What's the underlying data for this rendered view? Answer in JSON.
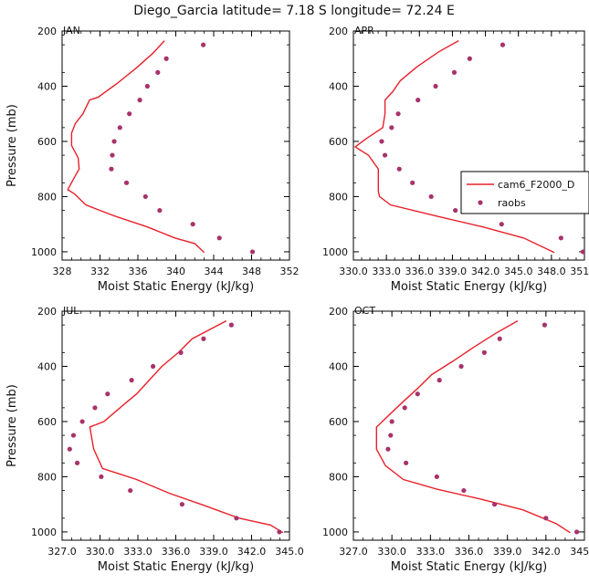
{
  "figure": {
    "title": "Diego_Garcia  latitude= 7.18 S longitude= 72.24 E",
    "series_color": "#e8202a",
    "raobs_color": "#a8326b"
  },
  "chart_data": [
    {
      "type": "line",
      "panel_label": "JAN",
      "xlabel": "Moist Static Energy (kJ/kg)",
      "ylabel": "Pressure (mb)",
      "xlim": [
        328,
        352
      ],
      "ylim": [
        200,
        1030
      ],
      "y_inverted": true,
      "x_ticks": [
        "328",
        "332",
        "336",
        "340",
        "344",
        "348",
        "352"
      ],
      "x_tick_values": [
        328,
        332,
        336,
        340,
        344,
        348,
        352
      ],
      "y_ticks": [
        "200",
        "400",
        "600",
        "800",
        "1000"
      ],
      "y_tick_values": [
        200,
        400,
        600,
        800,
        1000
      ],
      "legend": null,
      "series": [
        {
          "name": "cam6_F2000_D",
          "kind": "line",
          "points": [
            [
              338.8,
              235
            ],
            [
              337.6,
              280
            ],
            [
              335.8,
              335
            ],
            [
              333.8,
              390
            ],
            [
              331.8,
              440
            ],
            [
              330.9,
              450
            ],
            [
              330.2,
              500
            ],
            [
              329.4,
              535
            ],
            [
              329.0,
              570
            ],
            [
              329.0,
              615
            ],
            [
              329.7,
              660
            ],
            [
              329.8,
              700
            ],
            [
              329.3,
              730
            ],
            [
              328.6,
              775
            ],
            [
              329.3,
              790
            ],
            [
              330.5,
              830
            ],
            [
              333.5,
              870
            ],
            [
              337.0,
              910
            ],
            [
              339.9,
              950
            ],
            [
              342.0,
              970
            ],
            [
              343.0,
              1003
            ]
          ]
        },
        {
          "name": "raobs",
          "kind": "scatter",
          "points": [
            [
              342.9,
              250
            ],
            [
              339.0,
              300
            ],
            [
              338.1,
              350
            ],
            [
              337.0,
              400
            ],
            [
              336.2,
              450
            ],
            [
              335.1,
              500
            ],
            [
              334.1,
              550
            ],
            [
              333.5,
              600
            ],
            [
              333.3,
              650
            ],
            [
              333.2,
              700
            ],
            [
              334.8,
              750
            ],
            [
              336.8,
              800
            ],
            [
              338.3,
              850
            ],
            [
              341.8,
              900
            ],
            [
              344.6,
              950
            ],
            [
              348.1,
              1000
            ]
          ]
        }
      ]
    },
    {
      "type": "line",
      "panel_label": "APR",
      "xlabel": "Moist Static Energy (kJ/kg)",
      "ylabel": "",
      "xlim": [
        330.03,
        351.03
      ],
      "ylim": [
        200,
        1030
      ],
      "y_inverted": true,
      "x_ticks": [
        "330.0",
        "333.0",
        "336.0",
        "339.0",
        "342.0",
        "345.0",
        "348.0",
        "351.0"
      ],
      "x_tick_values": [
        330.03,
        333.03,
        336.03,
        339.03,
        342.03,
        345.03,
        348.03,
        351.03
      ],
      "y_ticks": [
        "200",
        "400",
        "600",
        "800",
        "1000"
      ],
      "y_tick_values": [
        200,
        400,
        600,
        800,
        1000
      ],
      "legend": {
        "position": "right",
        "entries": [
          "cam6_F2000_D",
          "raobs"
        ]
      },
      "series": [
        {
          "name": "cam6_F2000_D",
          "kind": "line",
          "points": [
            [
              339.6,
              235
            ],
            [
              337.8,
              275
            ],
            [
              335.8,
              330
            ],
            [
              334.3,
              380
            ],
            [
              333.6,
              420
            ],
            [
              332.9,
              450
            ],
            [
              332.9,
              500
            ],
            [
              332.7,
              550
            ],
            [
              331.2,
              590
            ],
            [
              330.2,
              620
            ],
            [
              331.4,
              650
            ],
            [
              332.3,
              700
            ],
            [
              332.3,
              780
            ],
            [
              332.4,
              800
            ],
            [
              333.4,
              830
            ],
            [
              337.5,
              870
            ],
            [
              341.8,
              910
            ],
            [
              345.5,
              950
            ],
            [
              348.3,
              1003
            ]
          ]
        },
        {
          "name": "raobs",
          "kind": "scatter",
          "points": [
            [
              343.6,
              250
            ],
            [
              340.6,
              300
            ],
            [
              339.2,
              350
            ],
            [
              337.5,
              400
            ],
            [
              335.9,
              450
            ],
            [
              334.1,
              500
            ],
            [
              333.5,
              550
            ],
            [
              332.6,
              600
            ],
            [
              332.9,
              650
            ],
            [
              334.2,
              700
            ],
            [
              335.4,
              750
            ],
            [
              337.1,
              800
            ],
            [
              339.3,
              850
            ],
            [
              343.5,
              900
            ],
            [
              348.9,
              950
            ],
            [
              350.9,
              1000
            ]
          ]
        }
      ]
    },
    {
      "type": "line",
      "panel_label": "JUL",
      "xlabel": "Moist Static Energy (kJ/kg)",
      "ylabel": "Pressure (mb)",
      "xlim": [
        327,
        345
      ],
      "ylim": [
        200,
        1030
      ],
      "y_inverted": true,
      "x_ticks": [
        "327.0",
        "330.0",
        "333.0",
        "336.0",
        "339.0",
        "342.0",
        "345.0"
      ],
      "x_tick_values": [
        327,
        330,
        333,
        336,
        339,
        342,
        345
      ],
      "y_ticks": [
        "200",
        "400",
        "600",
        "800",
        "1000"
      ],
      "y_tick_values": [
        200,
        400,
        600,
        800,
        1000
      ],
      "legend": null,
      "series": [
        {
          "name": "cam6_F2000_D",
          "kind": "line",
          "points": [
            [
              340.0,
              235
            ],
            [
              337.3,
              300
            ],
            [
              336.2,
              350
            ],
            [
              334.9,
              400
            ],
            [
              333.9,
              450
            ],
            [
              332.9,
              500
            ],
            [
              332.1,
              530
            ],
            [
              330.3,
              600
            ],
            [
              329.2,
              620
            ],
            [
              329.5,
              700
            ],
            [
              330.2,
              770
            ],
            [
              332.9,
              810
            ],
            [
              335.5,
              860
            ],
            [
              338.0,
              900
            ],
            [
              341.0,
              950
            ],
            [
              343.5,
              975
            ],
            [
              344.5,
              1003
            ]
          ]
        },
        {
          "name": "raobs",
          "kind": "scatter",
          "points": [
            [
              340.4,
              250
            ],
            [
              338.2,
              300
            ],
            [
              336.4,
              350
            ],
            [
              334.2,
              400
            ],
            [
              332.5,
              450
            ],
            [
              330.6,
              500
            ],
            [
              329.6,
              550
            ],
            [
              328.6,
              600
            ],
            [
              327.9,
              650
            ],
            [
              327.6,
              700
            ],
            [
              328.2,
              750
            ],
            [
              330.1,
              800
            ],
            [
              332.4,
              850
            ],
            [
              336.5,
              900
            ],
            [
              340.8,
              950
            ],
            [
              344.2,
              1000
            ]
          ]
        }
      ]
    },
    {
      "type": "line",
      "panel_label": "OCT",
      "xlabel": "Moist Static Energy (kJ/kg)",
      "ylabel": "",
      "xlim": [
        327,
        345
      ],
      "ylim": [
        200,
        1030
      ],
      "y_inverted": true,
      "x_ticks": [
        "327.0",
        "330.0",
        "333.0",
        "336.0",
        "339.0",
        "342.0",
        "345.0"
      ],
      "x_tick_values": [
        327,
        330,
        333,
        336,
        339,
        342,
        345
      ],
      "y_ticks": [
        "200",
        "400",
        "600",
        "800",
        "1000"
      ],
      "y_tick_values": [
        200,
        400,
        600,
        800,
        1000
      ],
      "legend": null,
      "series": [
        {
          "name": "cam6_F2000_D",
          "kind": "line",
          "points": [
            [
              339.8,
              235
            ],
            [
              338.1,
              280
            ],
            [
              336.4,
              330
            ],
            [
              334.8,
              380
            ],
            [
              333.1,
              430
            ],
            [
              332.0,
              480
            ],
            [
              330.6,
              540
            ],
            [
              328.8,
              620
            ],
            [
              328.8,
              700
            ],
            [
              329.5,
              760
            ],
            [
              330.9,
              810
            ],
            [
              333.5,
              845
            ],
            [
              336.8,
              880
            ],
            [
              340.2,
              920
            ],
            [
              342.8,
              970
            ],
            [
              343.9,
              1003
            ]
          ]
        },
        {
          "name": "raobs",
          "kind": "scatter",
          "points": [
            [
              341.9,
              250
            ],
            [
              338.4,
              300
            ],
            [
              337.2,
              350
            ],
            [
              335.4,
              400
            ],
            [
              333.7,
              450
            ],
            [
              332.0,
              500
            ],
            [
              331.0,
              550
            ],
            [
              330.0,
              600
            ],
            [
              329.9,
              650
            ],
            [
              329.7,
              700
            ],
            [
              331.1,
              750
            ],
            [
              333.5,
              800
            ],
            [
              335.6,
              850
            ],
            [
              338.0,
              900
            ],
            [
              342.0,
              950
            ],
            [
              344.4,
              1000
            ]
          ]
        }
      ]
    }
  ]
}
